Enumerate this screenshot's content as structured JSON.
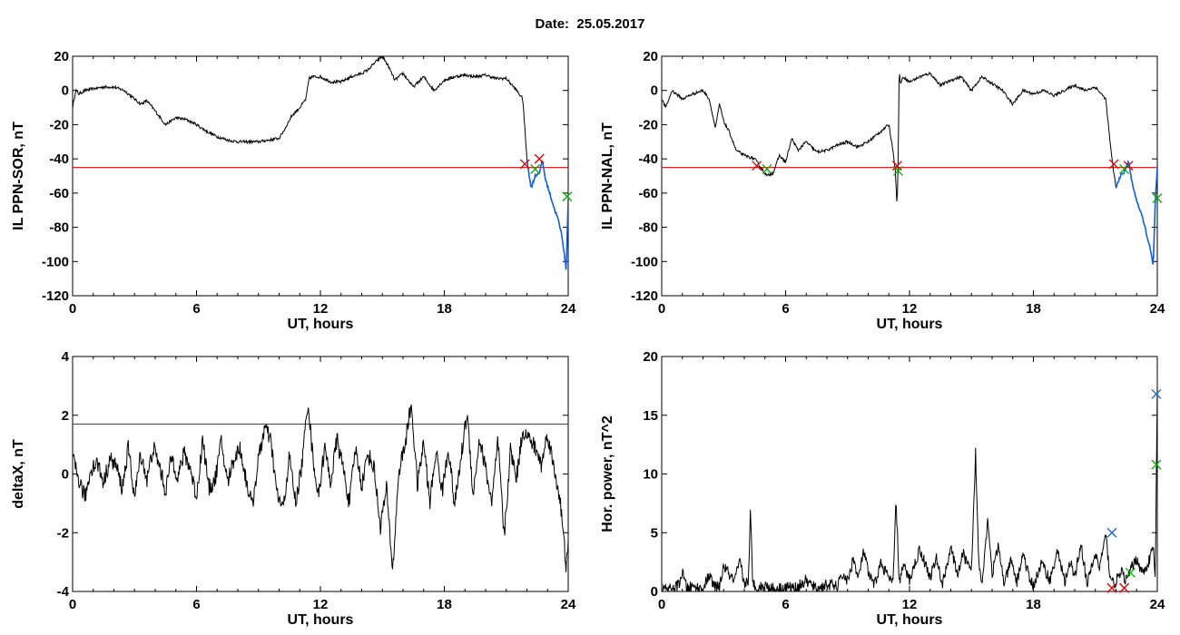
{
  "date_title": "Date:  25.05.2017",
  "chart_data": [
    {
      "id": "ppn-sor",
      "type": "line",
      "xlabel": "UT, hours",
      "ylabel": "IL PPN-SOR, nT",
      "xlim": [
        0,
        24
      ],
      "ylim": [
        -120,
        20
      ],
      "xticks": [
        "0",
        "6",
        "12",
        "18",
        "24"
      ],
      "yticks": [
        "-120",
        "-100",
        "-80",
        "-60",
        "-40",
        "-20",
        "0",
        "20"
      ],
      "threshold": -45,
      "threshold_color": "#dd0000",
      "line_color": "#000000",
      "highlight_color": "#1560d8",
      "series": [
        {
          "x": [
            0,
            0.15,
            0.3,
            0.6,
            1,
            1.5,
            2,
            2.5,
            3,
            3.3,
            3.6,
            4,
            4.5,
            5,
            5.5,
            6,
            6.5,
            7,
            7.5,
            8,
            8.5,
            9,
            9.5,
            10,
            10.3,
            10.6,
            11,
            11.3,
            11.45,
            11.6,
            12,
            12.5,
            13,
            13.5,
            14,
            14.3,
            14.7,
            15,
            15.3,
            15.6,
            16,
            16.5,
            17,
            17.5,
            18,
            18.5,
            19,
            19.5,
            20,
            20.5,
            21,
            21.5,
            21.8,
            22,
            22.2,
            22.4,
            22.6,
            22.75,
            22.9,
            23.1,
            23.3,
            23.5,
            23.7,
            23.8,
            23.9,
            24
          ],
          "values": [
            -10,
            0,
            -2,
            0,
            1,
            2,
            2,
            0,
            -5,
            -8,
            -6,
            -12,
            -20,
            -16,
            -17,
            -20,
            -24,
            -27,
            -29,
            -30,
            -30,
            -30,
            -29,
            -28,
            -22,
            -15,
            -10,
            -5,
            7,
            8,
            8,
            5,
            5,
            8,
            10,
            12,
            17,
            20,
            14,
            6,
            10,
            2,
            8,
            0,
            6,
            8,
            9,
            8,
            9,
            7,
            7,
            0,
            -5,
            -40,
            -57,
            -50,
            -48,
            -41,
            -52,
            -60,
            -68,
            -75,
            -85,
            -95,
            -105,
            -63
          ],
          "highlight_from": 22.0
        }
      ],
      "markers": [
        {
          "x": 21.9,
          "y": -43,
          "color": "#dd0000"
        },
        {
          "x": 22.6,
          "y": -40,
          "color": "#dd0000"
        },
        {
          "x": 22.4,
          "y": -46,
          "color": "#00aa00"
        },
        {
          "x": 23.95,
          "y": -62,
          "color": "#00aa00"
        }
      ]
    },
    {
      "id": "ppn-nal",
      "type": "line",
      "xlabel": "UT, hours",
      "ylabel": "IL PPN-NAL, nT",
      "xlim": [
        0,
        24
      ],
      "ylim": [
        -120,
        20
      ],
      "xticks": [
        "0",
        "6",
        "12",
        "18",
        "24"
      ],
      "yticks": [
        "-120",
        "-100",
        "-80",
        "-60",
        "-40",
        "-20",
        "0",
        "20"
      ],
      "threshold": -45,
      "threshold_color": "#dd0000",
      "line_color": "#000000",
      "highlight_color": "#1560d8",
      "series": [
        {
          "x": [
            0,
            0.2,
            0.5,
            1,
            1.5,
            2,
            2.3,
            2.6,
            2.8,
            3,
            3.3,
            3.6,
            4,
            4.5,
            4.8,
            5.1,
            5.4,
            5.7,
            6,
            6.3,
            6.6,
            7,
            7.5,
            8,
            8.5,
            9,
            9.5,
            10,
            10.5,
            11,
            11.2,
            11.3,
            11.4,
            11.45,
            11.5,
            11.55,
            11.6,
            11.7,
            12,
            12.5,
            13,
            13.5,
            14,
            14.5,
            15,
            15.5,
            16,
            16.5,
            17,
            17.5,
            18,
            18.5,
            19,
            19.5,
            20,
            20.5,
            21,
            21.5,
            21.8,
            22,
            22.2,
            22.4,
            22.6,
            22.75,
            22.9,
            23.1,
            23.3,
            23.5,
            23.7,
            23.8,
            23.9,
            24
          ],
          "values": [
            -5,
            -10,
            0,
            -5,
            -2,
            0,
            -5,
            -22,
            -8,
            -18,
            -25,
            -35,
            -38,
            -40,
            -45,
            -50,
            -48,
            -38,
            -42,
            -28,
            -35,
            -30,
            -36,
            -35,
            -32,
            -30,
            -33,
            -30,
            -25,
            -20,
            -35,
            -45,
            -67,
            -40,
            12,
            5,
            5,
            8,
            5,
            8,
            10,
            3,
            6,
            8,
            0,
            8,
            4,
            0,
            -8,
            0,
            -2,
            0,
            -3,
            0,
            3,
            0,
            2,
            -5,
            -40,
            -57,
            -50,
            -48,
            -41,
            -52,
            -60,
            -68,
            -75,
            -85,
            -95,
            -103,
            -65,
            -45
          ],
          "highlight_from": 22.0
        }
      ],
      "markers": [
        {
          "x": 4.6,
          "y": -44,
          "color": "#dd0000"
        },
        {
          "x": 5.1,
          "y": -46,
          "color": "#00aa00"
        },
        {
          "x": 11.4,
          "y": -44,
          "color": "#dd0000"
        },
        {
          "x": 11.45,
          "y": -47,
          "color": "#00aa00"
        },
        {
          "x": 21.9,
          "y": -43,
          "color": "#dd0000"
        },
        {
          "x": 22.6,
          "y": -44,
          "color": "#dd0000"
        },
        {
          "x": 22.4,
          "y": -46,
          "color": "#00aa00"
        },
        {
          "x": 24.0,
          "y": -63,
          "color": "#00aa00"
        }
      ]
    },
    {
      "id": "deltax",
      "type": "line",
      "xlabel": "UT, hours",
      "ylabel": "deltaX, nT",
      "xlim": [
        0,
        24
      ],
      "ylim": [
        -4,
        4
      ],
      "xticks": [
        "0",
        "6",
        "12",
        "18",
        "24"
      ],
      "yticks": [
        "-4",
        "-2",
        "0",
        "2",
        "4"
      ],
      "threshold": 1.7,
      "threshold_color": "#dd0000",
      "line_color": "#000000",
      "series": [
        {
          "x": [
            0,
            0.3,
            0.6,
            0.9,
            1.2,
            1.5,
            1.8,
            2.1,
            2.4,
            2.7,
            3.0,
            3.3,
            3.6,
            3.9,
            4.2,
            4.5,
            4.8,
            5.1,
            5.4,
            5.7,
            6.0,
            6.3,
            6.6,
            6.9,
            7.2,
            7.5,
            7.8,
            8.1,
            8.4,
            8.7,
            9.0,
            9.3,
            9.6,
            9.9,
            10.2,
            10.5,
            10.8,
            11.1,
            11.4,
            11.6,
            11.9,
            12.2,
            12.5,
            12.8,
            13.1,
            13.4,
            13.7,
            14.0,
            14.3,
            14.6,
            14.9,
            15.2,
            15.5,
            15.8,
            16.1,
            16.4,
            16.7,
            17.0,
            17.3,
            17.6,
            17.9,
            18.2,
            18.5,
            18.8,
            19.1,
            19.4,
            19.7,
            20.0,
            20.3,
            20.6,
            20.9,
            21.2,
            21.5,
            21.8,
            22.1,
            22.4,
            22.7,
            23.0,
            23.3,
            23.6,
            23.9,
            24
          ],
          "values": [
            0.5,
            -0.2,
            -0.8,
            0.2,
            0.4,
            -0.3,
            0.5,
            0.3,
            -0.5,
            0.9,
            -0.8,
            0.7,
            -0.2,
            0.9,
            0.3,
            -0.6,
            0.6,
            -0.1,
            0.7,
            0.2,
            -0.8,
            1.2,
            -0.5,
            -0.2,
            1.1,
            -0.3,
            0.5,
            0.9,
            -0.2,
            -1.1,
            0.5,
            1.6,
            1.1,
            -0.7,
            -1.2,
            0.6,
            -1.0,
            0.3,
            2.5,
            0.8,
            -0.8,
            0.9,
            -0.3,
            1.2,
            0.2,
            -1.0,
            0.9,
            -0.4,
            0.7,
            0.2,
            -1.8,
            -0.5,
            -3.3,
            0.1,
            1.0,
            2.4,
            -0.4,
            1.1,
            -1.0,
            0.8,
            -0.6,
            0.9,
            -1.1,
            0.5,
            2.1,
            -0.7,
            1.2,
            0.2,
            -1.0,
            1.1,
            -2.2,
            0.8,
            -0.1,
            1.5,
            1.2,
            0.9,
            0.3,
            1.4,
            0.2,
            -0.8,
            -3.2,
            -2.5
          ],
          "jitter": 0.3
        }
      ],
      "markers": []
    },
    {
      "id": "hor-power",
      "type": "line",
      "xlabel": "UT, hours",
      "ylabel": "Hor. power, nT^2",
      "xlim": [
        0,
        24
      ],
      "ylim": [
        0,
        20
      ],
      "xticks": [
        "0",
        "6",
        "12",
        "18",
        "24"
      ],
      "yticks": [
        "0",
        "5",
        "10",
        "15",
        "20"
      ],
      "line_color": "#000000",
      "series": [
        {
          "x": [
            0,
            0.5,
            0.8,
            1.0,
            1.2,
            1.5,
            2.0,
            2.3,
            2.5,
            2.8,
            3.0,
            3.5,
            3.8,
            4.0,
            4.2,
            4.3,
            4.4,
            4.6,
            5.0,
            5.5,
            6.0,
            6.5,
            7.0,
            7.5,
            8.0,
            8.5,
            8.8,
            9.0,
            9.3,
            9.5,
            9.8,
            10.0,
            10.3,
            10.6,
            11.0,
            11.2,
            11.35,
            11.5,
            11.7,
            12.0,
            12.5,
            13.0,
            13.3,
            13.6,
            14.0,
            14.3,
            14.6,
            15.0,
            15.2,
            15.35,
            15.5,
            15.8,
            16.0,
            16.3,
            16.6,
            16.9,
            17.2,
            17.5,
            17.8,
            18.0,
            18.4,
            18.8,
            19.2,
            19.5,
            19.8,
            20.0,
            20.3,
            20.6,
            21.0,
            21.2,
            21.5,
            21.7,
            21.9,
            22.1,
            22.3,
            22.5,
            22.8,
            23.0,
            23.3,
            23.6,
            23.8,
            23.9,
            24
          ],
          "values": [
            0.1,
            0.2,
            0.5,
            1.6,
            0.3,
            0.4,
            0.2,
            1.4,
            0.5,
            0.3,
            2.2,
            0.8,
            2.5,
            0.6,
            1.0,
            6.9,
            0.8,
            0.3,
            0.5,
            0.2,
            0.4,
            0.3,
            0.9,
            0.2,
            0.6,
            0.4,
            1.5,
            0.8,
            2.9,
            1.0,
            3.5,
            1.5,
            0.5,
            2.4,
            1.2,
            0.6,
            7.8,
            0.8,
            2.2,
            1.0,
            3.6,
            1.2,
            2.8,
            0.6,
            3.8,
            1.4,
            3.2,
            1.5,
            11.8,
            2.5,
            0.8,
            6.2,
            1.5,
            3.8,
            0.6,
            2.6,
            0.8,
            3.3,
            1.1,
            0.5,
            2.4,
            1.0,
            3.5,
            0.8,
            2.4,
            1.2,
            4.1,
            0.6,
            3.2,
            2.0,
            4.8,
            1.5,
            0.6,
            1.2,
            1.6,
            0.9,
            2.2,
            2.8,
            1.5,
            2.6,
            3.8,
            1.0,
            17.0
          ],
          "jitter": 0.5
        }
      ],
      "markers": [
        {
          "x": 21.8,
          "y": 5.0,
          "color": "#1560d8"
        },
        {
          "x": 21.8,
          "y": 0.3,
          "color": "#dd0000"
        },
        {
          "x": 22.4,
          "y": 0.3,
          "color": "#dd0000"
        },
        {
          "x": 22.7,
          "y": 1.6,
          "color": "#00aa00"
        },
        {
          "x": 23.95,
          "y": 16.8,
          "color": "#1560d8"
        },
        {
          "x": 23.95,
          "y": 10.8,
          "color": "#00aa00"
        }
      ]
    }
  ]
}
